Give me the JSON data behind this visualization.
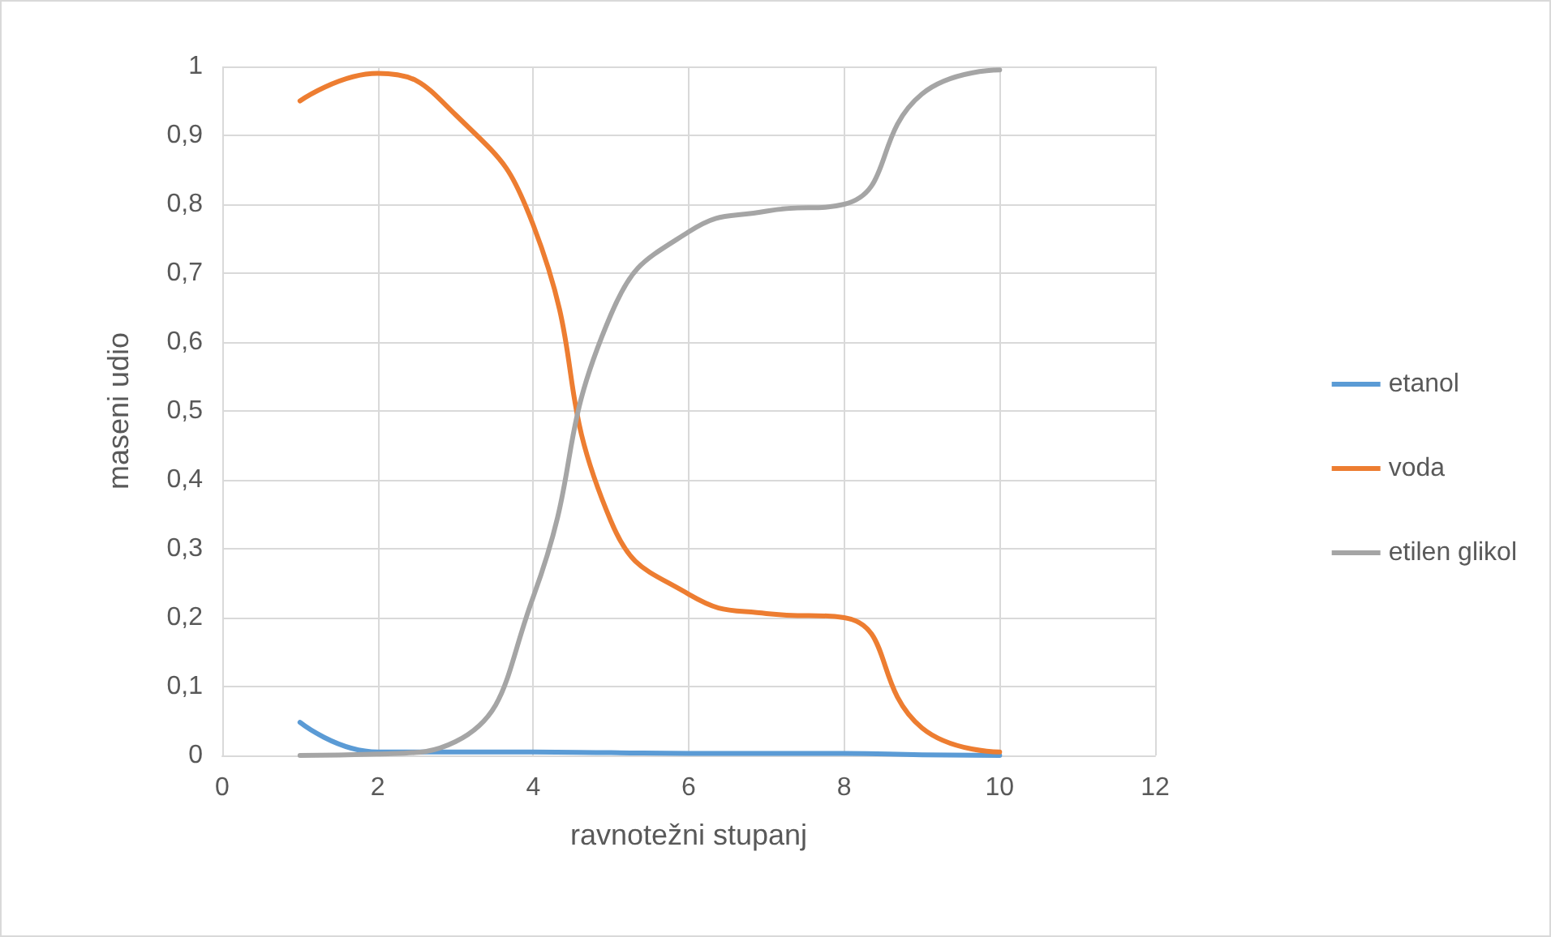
{
  "chart_data": {
    "type": "line",
    "xlabel": "ravnotežni stupanj",
    "ylabel": "maseni udio",
    "x": [
      1,
      2,
      3,
      4,
      5,
      6,
      7,
      8,
      9,
      10
    ],
    "series": [
      {
        "name": "etanol",
        "color": "#5b9bd5",
        "values": [
          0.048,
          0.005,
          0.005,
          0.005,
          0.004,
          0.003,
          0.003,
          0.003,
          0.001,
          0
        ]
      },
      {
        "name": "voda",
        "color": "#ed7d31",
        "values": [
          0.95,
          0.99,
          0.93,
          0.77,
          0.34,
          0.234,
          0.206,
          0.2,
          0.04,
          0.005
        ]
      },
      {
        "name": "etilen glikol",
        "color": "#a5a5a5",
        "values": [
          0,
          0.002,
          0.02,
          0.23,
          0.64,
          0.76,
          0.79,
          0.8,
          0.96,
          0.995
        ]
      }
    ],
    "xlim": [
      0,
      12
    ],
    "xticks": [
      0,
      2,
      4,
      6,
      8,
      10,
      12
    ],
    "ylim": [
      0,
      1
    ],
    "yticks": [
      0,
      {
        "value": 0.1,
        "label": "0,1"
      },
      {
        "value": 0.2,
        "label": "0,2"
      },
      {
        "value": 0.3,
        "label": "0,3"
      },
      {
        "value": 0.4,
        "label": "0,4"
      },
      {
        "value": 0.5,
        "label": "0,5"
      },
      {
        "value": 0.6,
        "label": "0,6"
      },
      {
        "value": 0.7,
        "label": "0,7"
      },
      {
        "value": 0.8,
        "label": "0,8"
      },
      {
        "value": 0.9,
        "label": "0,9"
      },
      1
    ],
    "grid": true,
    "legend": "right",
    "marker": "none",
    "line_style": "solid"
  }
}
